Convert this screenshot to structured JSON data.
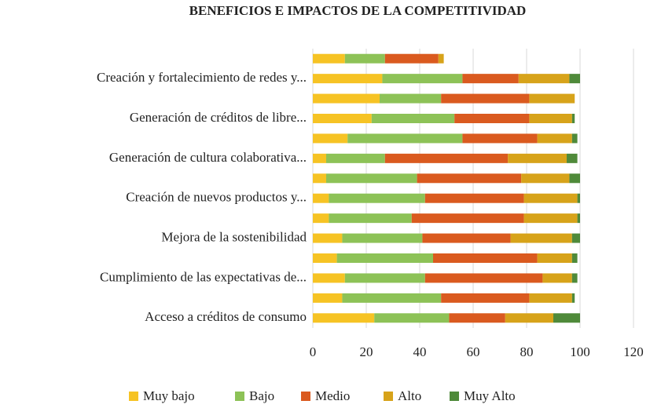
{
  "chart_data": {
    "type": "stacked_barh",
    "title": "BENEFICIOS E IMPACTOS DE LA COMPETITIVIDAD",
    "categories": [
      null,
      "Creación y fortalecimiento de redes y...",
      null,
      "Generación de créditos de libre...",
      null,
      "Generación de cultura colaborativa...",
      null,
      "Creación de nuevos productos y...",
      null,
      "Mejora de la sostenibilidad",
      null,
      "Cumplimiento de las expectativas de...",
      null,
      "Acceso a créditos de consumo"
    ],
    "series": [
      {
        "name": "Muy bajo",
        "color": "#f6c324",
        "values": [
          12,
          26,
          25,
          22,
          13,
          5,
          5,
          6,
          6,
          11,
          9,
          12,
          11,
          23
        ]
      },
      {
        "name": "Bajo",
        "color": "#8dc257",
        "values": [
          15,
          30,
          23,
          31,
          43,
          22,
          34,
          36,
          31,
          30,
          36,
          30,
          37,
          28
        ]
      },
      {
        "name": "Medio",
        "color": "#da5a1f",
        "values": [
          20,
          21,
          33,
          28,
          28,
          46,
          39,
          37,
          42,
          33,
          39,
          44,
          33,
          21
        ]
      },
      {
        "name": "Alto",
        "color": "#d7a31a",
        "values": [
          2,
          19,
          17,
          16,
          13,
          22,
          18,
          20,
          20,
          23,
          13,
          11,
          16,
          18
        ]
      },
      {
        "name": "Muy Alto",
        "color": "#4f8a3a",
        "values": [
          0,
          4,
          0,
          1,
          2,
          4,
          4,
          1,
          1,
          3,
          2,
          2,
          1,
          10
        ]
      }
    ],
    "xlim": [
      0,
      120
    ],
    "xticks": [
      0,
      20,
      40,
      60,
      80,
      100,
      120
    ],
    "grid": true,
    "legend": "bottom"
  }
}
